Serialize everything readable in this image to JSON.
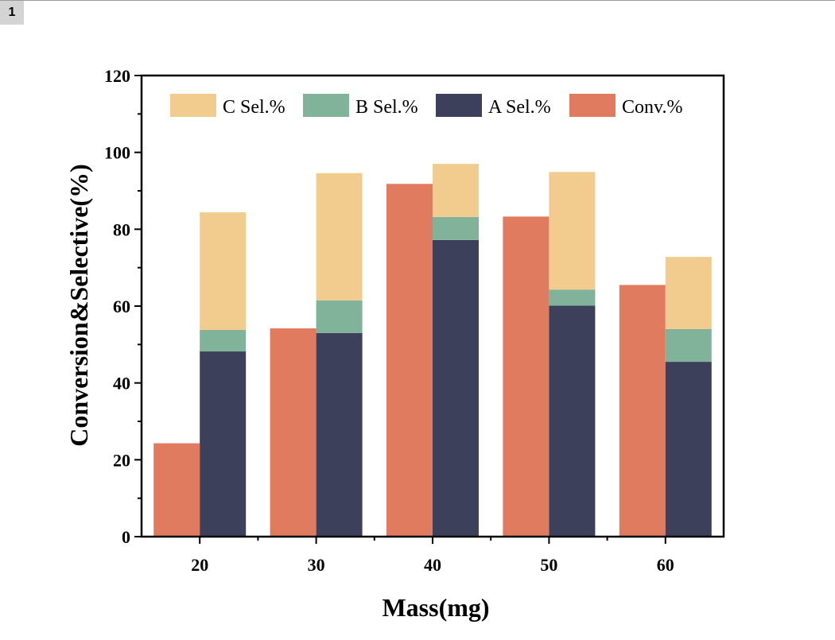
{
  "page": {
    "tag": "1"
  },
  "chart_data": {
    "type": "bar",
    "xlabel": "Mass(mg)",
    "ylabel": "Conversion&Selective(%)",
    "ylim": [
      0,
      120
    ],
    "yticks": [
      0,
      20,
      40,
      60,
      80,
      100,
      120
    ],
    "categories": [
      "20",
      "30",
      "40",
      "50",
      "60"
    ],
    "grid": false,
    "legend_position": "top",
    "legend_order": [
      "C Sel.%",
      "B Sel.%",
      "A Sel.%",
      "Conv.%"
    ],
    "series": [
      {
        "name": "Conv.%",
        "color": "#e07b5f",
        "values": [
          24.3,
          54.2,
          91.8,
          83.3,
          65.5
        ]
      },
      {
        "name": "A Sel.%",
        "color": "#3d405b",
        "stack": "sel",
        "values": [
          48.2,
          53.0,
          77.2,
          60.1,
          45.5
        ]
      },
      {
        "name": "B Sel.%",
        "color": "#81b29a",
        "stack": "sel",
        "values": [
          5.6,
          8.5,
          6.0,
          4.2,
          8.5
        ]
      },
      {
        "name": "C Sel.%",
        "color": "#f2cc8f",
        "stack": "sel",
        "values": [
          30.6,
          33.1,
          13.8,
          30.6,
          18.8
        ]
      }
    ]
  }
}
